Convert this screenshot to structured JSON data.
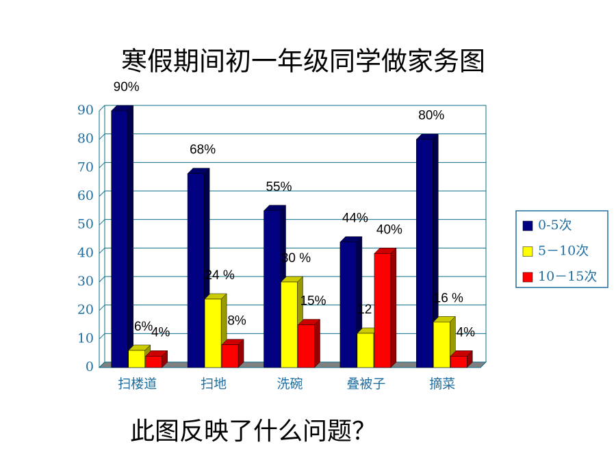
{
  "chart_data": {
    "type": "bar3d",
    "title": "寒假期间初一年级同学做家务图",
    "annotation": "此图反映了什么问题？",
    "categories": [
      "扫楼道",
      "扫地",
      "洗碗",
      "叠被子",
      "摘菜"
    ],
    "series": [
      {
        "name": "0-5次",
        "color": "#000080",
        "values": [
          90,
          68,
          55,
          44,
          80
        ],
        "value_labels": [
          "90%",
          "68%",
          "55%",
          "44%",
          "80%"
        ]
      },
      {
        "name": "5－10次",
        "color": "#ffff00",
        "values": [
          6,
          24,
          30,
          12,
          16
        ],
        "value_labels": [
          "6%",
          "24 %",
          "30 %",
          "12 %",
          "16 %"
        ]
      },
      {
        "name": "10－15次",
        "color": "#ff0000",
        "values": [
          4,
          8,
          15,
          40,
          4
        ],
        "value_labels": [
          "4%",
          "8%",
          "15%",
          "40%",
          "4%"
        ]
      }
    ],
    "ylim": [
      0,
      90
    ],
    "yticks": [
      0,
      10,
      20,
      30,
      40,
      50,
      60,
      70,
      80,
      90
    ],
    "grid": true,
    "legend": "right"
  }
}
